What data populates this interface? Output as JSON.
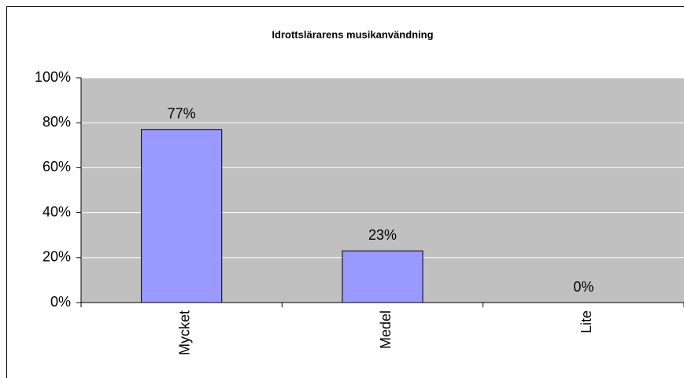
{
  "chart_data": {
    "type": "bar",
    "title": "Idrottslärarens musikanvändning",
    "categories": [
      "Mycket",
      "Medel",
      "Lite"
    ],
    "values": [
      77,
      23,
      0
    ],
    "value_labels": [
      "77%",
      "23%",
      "0%"
    ],
    "color": "#9999ff",
    "ylim": [
      0,
      100
    ],
    "yticks": [
      {
        "value": 0,
        "label": "0%"
      },
      {
        "value": 20,
        "label": "20%"
      },
      {
        "value": 40,
        "label": "40%"
      },
      {
        "value": 60,
        "label": "60%"
      },
      {
        "value": 80,
        "label": "80%"
      },
      {
        "value": 100,
        "label": "100%"
      }
    ],
    "grid": true
  }
}
